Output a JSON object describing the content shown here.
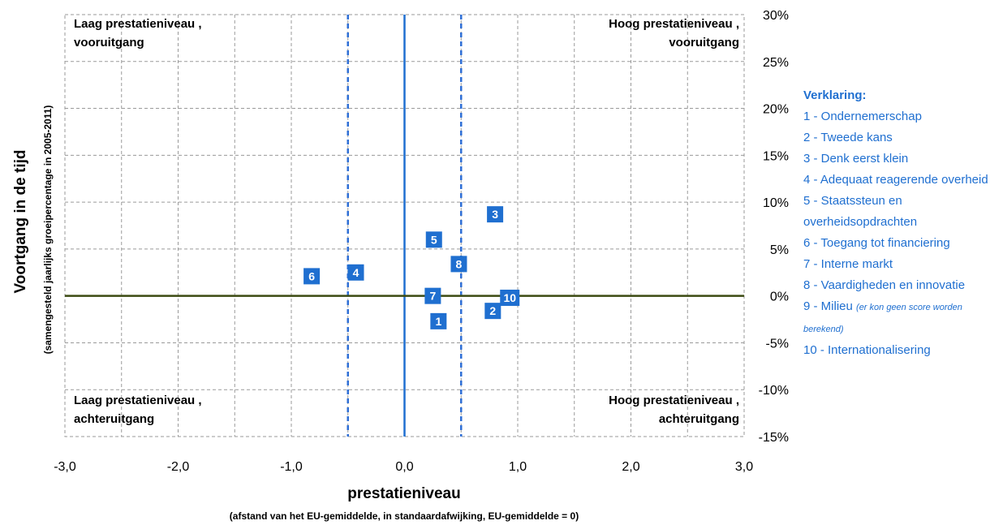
{
  "chart_data": {
    "type": "scatter",
    "xlabel": "prestatieniveau",
    "xlabel_sub": "(afstand van het EU-gemiddelde,  in standaardafwijking, EU-gemiddelde = 0)",
    "ylabel": "Voortgang in de tijd",
    "ylabel_sub": "(samengesteld jaarlijks groeipercentage in 2005-2011)",
    "xlim": [
      -3,
      3
    ],
    "ylim": [
      -15,
      30
    ],
    "x_ticks": [
      "-3,0",
      "-2,0",
      "-1,0",
      "0,0",
      "1,0",
      "2,0",
      "3,0"
    ],
    "y_ticks": [
      "30%",
      "25%",
      "20%",
      "15%",
      "10%",
      "5%",
      "0%",
      "-5%",
      "-10%",
      "-15%"
    ],
    "grid": true,
    "reference_lines": {
      "vertical_solid": 0,
      "vertical_dashed": [
        -0.5,
        0.5
      ],
      "horizontal": 0
    },
    "quadrants": {
      "top_left": [
        "Laag prestatieniveau ,",
        "vooruitgang"
      ],
      "top_right": [
        "Hoog prestatieniveau ,",
        "vooruitgang"
      ],
      "bottom_left": [
        "Laag prestatieniveau ,",
        "achteruitgang"
      ],
      "bottom_right": [
        "Hoog prestatieniveau ,",
        "achteruitgang"
      ]
    },
    "points": [
      {
        "label": "1",
        "x": 0.3,
        "y": -2.7
      },
      {
        "label": "2",
        "x": 0.78,
        "y": -1.6
      },
      {
        "label": "3",
        "x": 0.8,
        "y": 8.7
      },
      {
        "label": "4",
        "x": -0.43,
        "y": 2.5
      },
      {
        "label": "5",
        "x": 0.26,
        "y": 6.0
      },
      {
        "label": "6",
        "x": -0.82,
        "y": 2.1
      },
      {
        "label": "7",
        "x": 0.25,
        "y": 0.0
      },
      {
        "label": "8",
        "x": 0.48,
        "y": 3.4
      },
      {
        "label": "10",
        "x": 0.93,
        "y": -0.2
      }
    ],
    "marker_color": "#1f6fd0"
  },
  "legend": {
    "title": "Verklaring:",
    "items": [
      "1 - Ondernemerschap",
      "2 - Tweede kans",
      "3 - Denk eerst klein",
      "4 - Adequaat reagerende overheid",
      "5 - Staatssteun en overheidsopdrachten",
      "6 -  Toegang tot financiering",
      "7 - Interne markt",
      "8 - Vaardigheden en innovatie",
      "9 - Milieu",
      "10 - Internationalisering"
    ],
    "note": "(er kon geen score worden berekend)"
  }
}
